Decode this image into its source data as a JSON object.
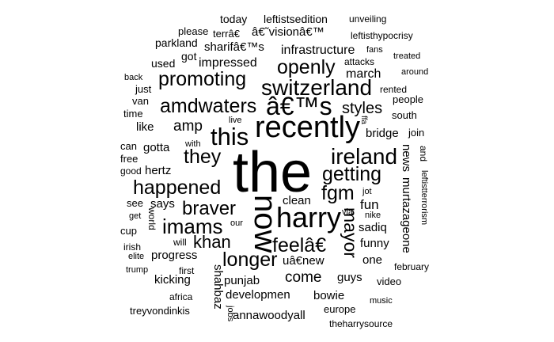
{
  "words": [
    {
      "id": "w-the",
      "text": "the"
    },
    {
      "id": "w-recently",
      "text": "recently"
    },
    {
      "id": "w-now",
      "text": "now"
    },
    {
      "id": "w-harry",
      "text": "harry"
    },
    {
      "id": "w-switzerland",
      "text": "switzerland"
    },
    {
      "id": "w-ireland",
      "text": "ireland"
    },
    {
      "id": "w-this",
      "text": "this"
    },
    {
      "id": "w-s",
      "text": "â€™s"
    },
    {
      "id": "w-promoting",
      "text": "promoting"
    },
    {
      "id": "w-openly",
      "text": "openly"
    },
    {
      "id": "w-amdwaters",
      "text": "amdwaters"
    },
    {
      "id": "w-they",
      "text": "they"
    },
    {
      "id": "w-happened",
      "text": "happened"
    },
    {
      "id": "w-getting",
      "text": "getting"
    },
    {
      "id": "w-fgm",
      "text": "fgm"
    },
    {
      "id": "w-braver",
      "text": "braver"
    },
    {
      "id": "w-imams",
      "text": "imams"
    },
    {
      "id": "w-feel",
      "text": "feelâ€"
    },
    {
      "id": "w-longer",
      "text": "longer"
    },
    {
      "id": "w-khan",
      "text": "khan"
    },
    {
      "id": "w-mayor",
      "text": "mayor"
    },
    {
      "id": "w-styles",
      "text": "styles"
    },
    {
      "id": "w-amp",
      "text": "amp"
    },
    {
      "id": "w-come",
      "text": "come"
    },
    {
      "id": "w-infrastructure",
      "text": "infrastructure"
    },
    {
      "id": "w-impressed",
      "text": "impressed"
    },
    {
      "id": "w-march",
      "text": "march"
    },
    {
      "id": "w-fun",
      "text": "fun"
    },
    {
      "id": "w-clean",
      "text": "clean"
    },
    {
      "id": "w-says",
      "text": "says"
    },
    {
      "id": "w-sadiq",
      "text": "sadiq"
    },
    {
      "id": "w-funny",
      "text": "funny"
    },
    {
      "id": "w-progress",
      "text": "progress"
    },
    {
      "id": "w-kicking",
      "text": "kicking"
    },
    {
      "id": "w-punjab",
      "text": "punjab"
    },
    {
      "id": "w-shahbaz",
      "text": "shahbaz"
    },
    {
      "id": "w-developmen",
      "text": "developmen"
    },
    {
      "id": "w-bowie",
      "text": "bowie"
    },
    {
      "id": "w-annawoodyall",
      "text": "annawoodyall"
    },
    {
      "id": "w-guys",
      "text": "guys"
    },
    {
      "id": "w-one",
      "text": "one"
    },
    {
      "id": "w-new",
      "text": "uâ€new"
    },
    {
      "id": "w-murtazageone",
      "text": "murtazageone"
    },
    {
      "id": "w-news",
      "text": "news"
    },
    {
      "id": "w-bridge",
      "text": "bridge"
    },
    {
      "id": "w-gotta",
      "text": "gotta"
    },
    {
      "id": "w-hertz",
      "text": "hertz"
    },
    {
      "id": "w-like",
      "text": "like"
    },
    {
      "id": "w-vision",
      "text": "â€˜visionâ€™"
    },
    {
      "id": "w-sharif",
      "text": "sharifâ€™s"
    },
    {
      "id": "w-parkland",
      "text": "parkland"
    },
    {
      "id": "w-got",
      "text": "got"
    },
    {
      "id": "w-used",
      "text": "used"
    },
    {
      "id": "w-today",
      "text": "today"
    },
    {
      "id": "w-please",
      "text": "please"
    },
    {
      "id": "w-terra",
      "text": "terrâ€"
    },
    {
      "id": "w-leftistsedition",
      "text": "leftistsedition"
    },
    {
      "id": "w-unveiling",
      "text": "unveiling"
    },
    {
      "id": "w-leftisthypocrisy",
      "text": "leftisthypocrisy"
    },
    {
      "id": "w-fans",
      "text": "fans"
    },
    {
      "id": "w-attacks",
      "text": "attacks"
    },
    {
      "id": "w-treated",
      "text": "treated"
    },
    {
      "id": "w-around",
      "text": "around"
    },
    {
      "id": "w-rented",
      "text": "rented"
    },
    {
      "id": "w-people",
      "text": "people"
    },
    {
      "id": "w-south",
      "text": "south"
    },
    {
      "id": "w-join",
      "text": "join"
    },
    {
      "id": "w-and",
      "text": "and"
    },
    {
      "id": "w-leftistterrorism",
      "text": "leftistterrorism"
    },
    {
      "id": "w-february",
      "text": "february"
    },
    {
      "id": "w-video",
      "text": "video"
    },
    {
      "id": "w-music",
      "text": "music"
    },
    {
      "id": "w-theharrysource",
      "text": "theharrysource"
    },
    {
      "id": "w-europe",
      "text": "europe"
    },
    {
      "id": "w-jobs",
      "text": "jobs"
    },
    {
      "id": "w-treyvondinkis",
      "text": "treyvondinkis"
    },
    {
      "id": "w-africa",
      "text": "africa"
    },
    {
      "id": "w-first",
      "text": "first"
    },
    {
      "id": "w-trump",
      "text": "trump"
    },
    {
      "id": "w-elite",
      "text": "elite"
    },
    {
      "id": "w-irish",
      "text": "irish"
    },
    {
      "id": "w-cup",
      "text": "cup"
    },
    {
      "id": "w-get",
      "text": "get"
    },
    {
      "id": "w-see",
      "text": "see"
    },
    {
      "id": "w-world",
      "text": "world"
    },
    {
      "id": "w-will",
      "text": "will"
    },
    {
      "id": "w-our",
      "text": "our"
    },
    {
      "id": "w-good",
      "text": "good"
    },
    {
      "id": "w-free",
      "text": "free"
    },
    {
      "id": "w-can",
      "text": "can"
    },
    {
      "id": "w-with",
      "text": "with"
    },
    {
      "id": "w-live",
      "text": "live"
    },
    {
      "id": "w-time",
      "text": "time"
    },
    {
      "id": "w-van",
      "text": "van"
    },
    {
      "id": "w-just",
      "text": "just"
    },
    {
      "id": "w-back",
      "text": "back"
    },
    {
      "id": "w-jot",
      "text": "jot"
    },
    {
      "id": "w-via",
      "text": "via"
    },
    {
      "id": "w-nike",
      "text": "nike"
    },
    {
      "id": "w-ffa",
      "text": "ffa"
    }
  ]
}
